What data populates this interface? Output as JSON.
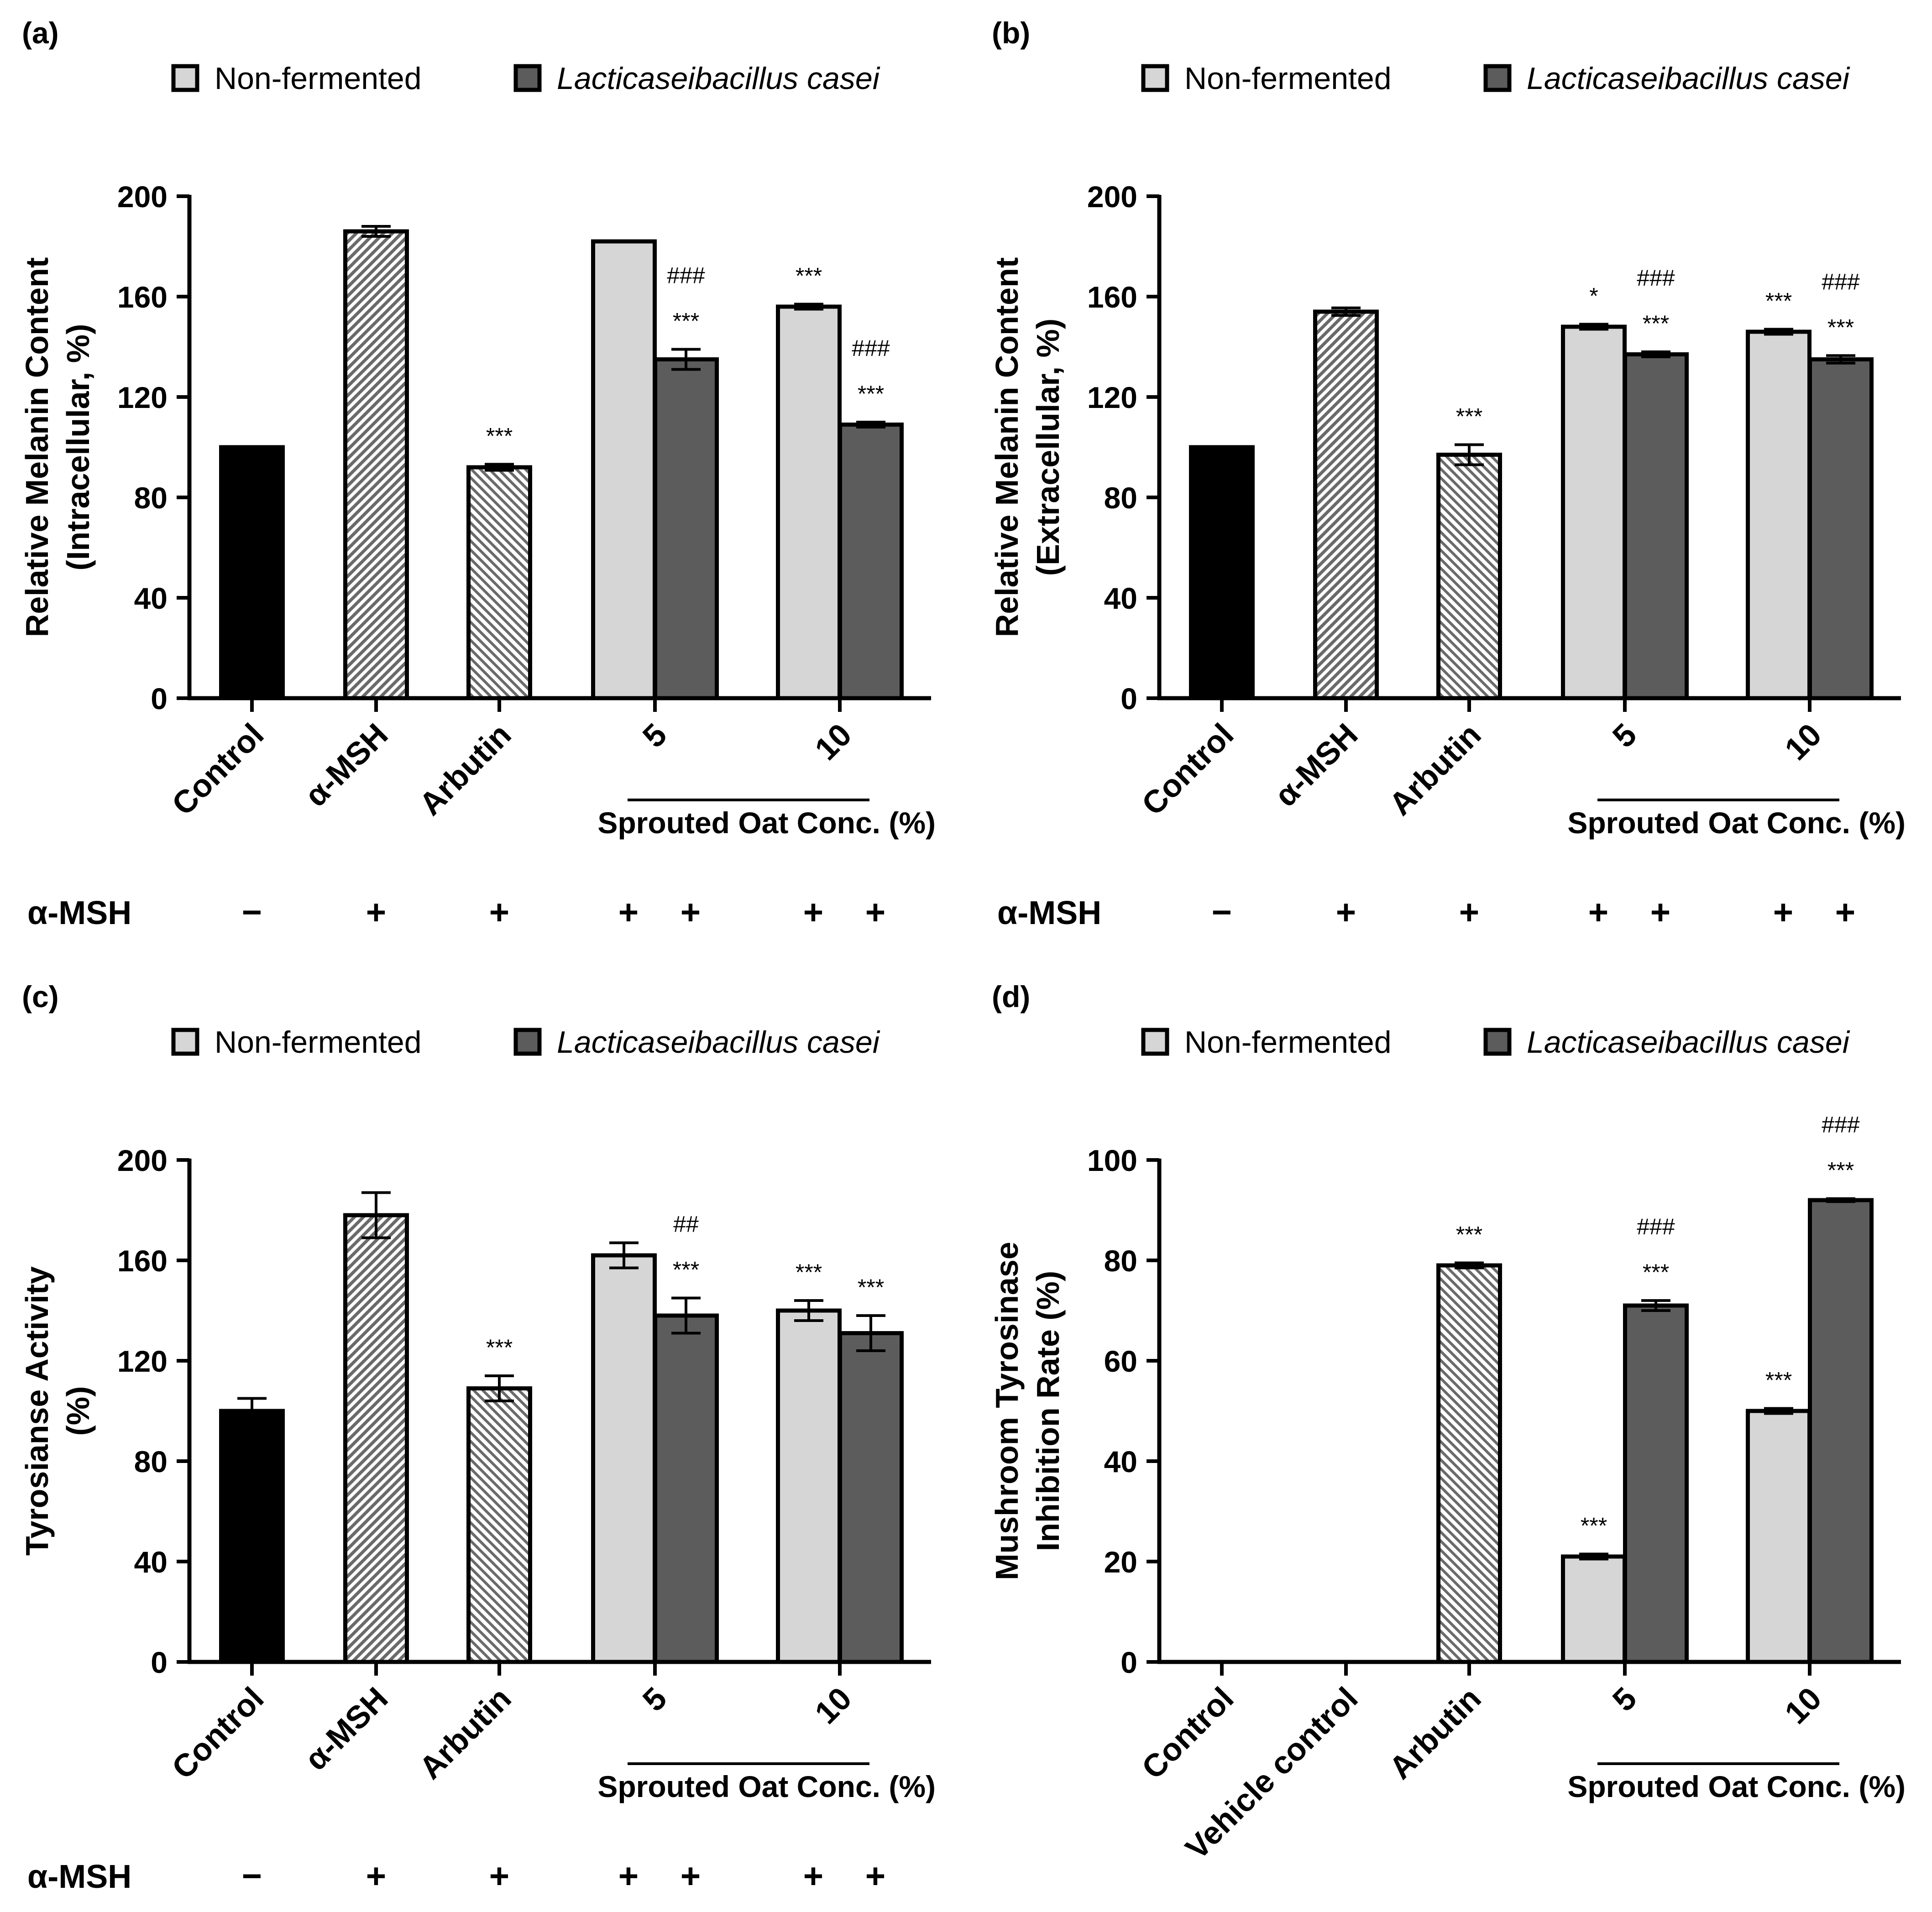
{
  "legend": {
    "non_fermented": "Non-fermented",
    "fermented": "Lacticaseibacillus casei"
  },
  "colors": {
    "control": "#000000",
    "non_fermented": "#d6d6d6",
    "fermented": "#5c5c5c",
    "hatch": "#6a6a6a"
  },
  "msh_label": "α-MSH",
  "group_label": "Sprouted Oat Conc. (%)",
  "chart_data": [
    {
      "panel": "(a)",
      "type": "bar",
      "ylabel": [
        "Relative Melanin Content",
        "(Intracellular, %)"
      ],
      "ylim": [
        0,
        200
      ],
      "yticks": [
        "0",
        "40",
        "80",
        "120",
        "160",
        "200"
      ],
      "categories": [
        "Control",
        "α-MSH",
        "Arbutin",
        "5",
        "10"
      ],
      "bars": [
        {
          "category": "Control",
          "value": 100,
          "err": 0,
          "style": "control"
        },
        {
          "category": "α-MSH",
          "value": 186,
          "err": 2,
          "style": "hatch-a"
        },
        {
          "category": "Arbutin",
          "value": 92,
          "err": 1.2,
          "style": "hatch-b",
          "annotation": [
            "***"
          ]
        },
        {
          "category": "5",
          "series": "Non-fermented",
          "value": 182,
          "err": 0,
          "style": "non_fermented"
        },
        {
          "category": "5",
          "series": "Lacticaseibacillus casei",
          "value": 135,
          "err": 4,
          "style": "fermented",
          "annotation": [
            "###",
            "***"
          ]
        },
        {
          "category": "10",
          "series": "Non-fermented",
          "value": 156,
          "err": 1,
          "style": "non_fermented",
          "annotation": [
            "***"
          ]
        },
        {
          "category": "10",
          "series": "Lacticaseibacillus casei",
          "value": 109,
          "err": 1,
          "style": "fermented",
          "annotation": [
            "###",
            "***"
          ]
        }
      ],
      "msh_row": [
        "−",
        "+",
        "+",
        "+",
        "+",
        "+",
        "+"
      ]
    },
    {
      "panel": "(b)",
      "type": "bar",
      "ylabel": [
        "Relative Melanin Content",
        "(Extracellular, %)"
      ],
      "ylim": [
        0,
        200
      ],
      "yticks": [
        "0",
        "40",
        "80",
        "120",
        "160",
        "200"
      ],
      "categories": [
        "Control",
        "α-MSH",
        "Arbutin",
        "5",
        "10"
      ],
      "bars": [
        {
          "category": "Control",
          "value": 100,
          "err": 0,
          "style": "control"
        },
        {
          "category": "α-MSH",
          "value": 154,
          "err": 1.5,
          "style": "hatch-a"
        },
        {
          "category": "Arbutin",
          "value": 97,
          "err": 4,
          "style": "hatch-b",
          "annotation": [
            "***"
          ]
        },
        {
          "category": "5",
          "series": "Non-fermented",
          "value": 148,
          "err": 1,
          "style": "non_fermented",
          "annotation": [
            "*"
          ]
        },
        {
          "category": "5",
          "series": "Lacticaseibacillus casei",
          "value": 137,
          "err": 1,
          "style": "fermented",
          "annotation": [
            "###",
            "***"
          ]
        },
        {
          "category": "10",
          "series": "Non-fermented",
          "value": 146,
          "err": 1,
          "style": "non_fermented",
          "annotation": [
            "***"
          ]
        },
        {
          "category": "10",
          "series": "Lacticaseibacillus casei",
          "value": 135,
          "err": 1.5,
          "style": "fermented",
          "annotation": [
            "###",
            "***"
          ]
        }
      ],
      "msh_row": [
        "−",
        "+",
        "+",
        "+",
        "+",
        "+",
        "+"
      ]
    },
    {
      "panel": "(c)",
      "type": "bar",
      "ylabel": [
        "Tyrosianse Activity",
        "(%)"
      ],
      "ylim": [
        0,
        200
      ],
      "yticks": [
        "0",
        "40",
        "80",
        "120",
        "160",
        "200"
      ],
      "categories": [
        "Control",
        "α-MSH",
        "Arbutin",
        "5",
        "10"
      ],
      "bars": [
        {
          "category": "Control",
          "value": 100,
          "err": 5,
          "style": "control"
        },
        {
          "category": "α-MSH",
          "value": 178,
          "err": 9,
          "style": "hatch-a"
        },
        {
          "category": "Arbutin",
          "value": 109,
          "err": 5,
          "style": "hatch-b",
          "annotation": [
            "***"
          ]
        },
        {
          "category": "5",
          "series": "Non-fermented",
          "value": 162,
          "err": 5,
          "style": "non_fermented"
        },
        {
          "category": "5",
          "series": "Lacticaseibacillus casei",
          "value": 138,
          "err": 7,
          "style": "fermented",
          "annotation": [
            "##",
            "***"
          ]
        },
        {
          "category": "10",
          "series": "Non-fermented",
          "value": 140,
          "err": 4,
          "style": "non_fermented",
          "annotation": [
            "***"
          ]
        },
        {
          "category": "10",
          "series": "Lacticaseibacillus casei",
          "value": 131,
          "err": 7,
          "style": "fermented",
          "annotation": [
            "***"
          ]
        }
      ],
      "msh_row": [
        "−",
        "+",
        "+",
        "+",
        "+",
        "+",
        "+"
      ]
    },
    {
      "panel": "(d)",
      "type": "bar",
      "ylabel": [
        "Mushroom Tyrosinase",
        "Inhibition Rate (%)"
      ],
      "ylim": [
        0,
        100
      ],
      "yticks": [
        "0",
        "20",
        "40",
        "60",
        "80",
        "100"
      ],
      "categories": [
        "Control",
        "Vehicle control",
        "Arbutin",
        "5",
        "10"
      ],
      "bars": [
        {
          "category": "Control",
          "value": 0,
          "err": 0,
          "style": "control"
        },
        {
          "category": "Vehicle control",
          "value": 0,
          "err": 0,
          "style": "hatch-a"
        },
        {
          "category": "Arbutin",
          "value": 79,
          "err": 0.5,
          "style": "hatch-b",
          "annotation": [
            "***"
          ]
        },
        {
          "category": "5",
          "series": "Non-fermented",
          "value": 21,
          "err": 0.5,
          "style": "non_fermented",
          "annotation": [
            "***"
          ]
        },
        {
          "category": "5",
          "series": "Lacticaseibacillus casei",
          "value": 71,
          "err": 1,
          "style": "fermented",
          "annotation": [
            "###",
            "***"
          ]
        },
        {
          "category": "10",
          "series": "Non-fermented",
          "value": 50,
          "err": 0.5,
          "style": "non_fermented",
          "annotation": [
            "***"
          ]
        },
        {
          "category": "10",
          "series": "Lacticaseibacillus casei",
          "value": 92,
          "err": 0.3,
          "style": "fermented",
          "annotation": [
            "###",
            "***"
          ]
        }
      ],
      "msh_row": []
    }
  ]
}
